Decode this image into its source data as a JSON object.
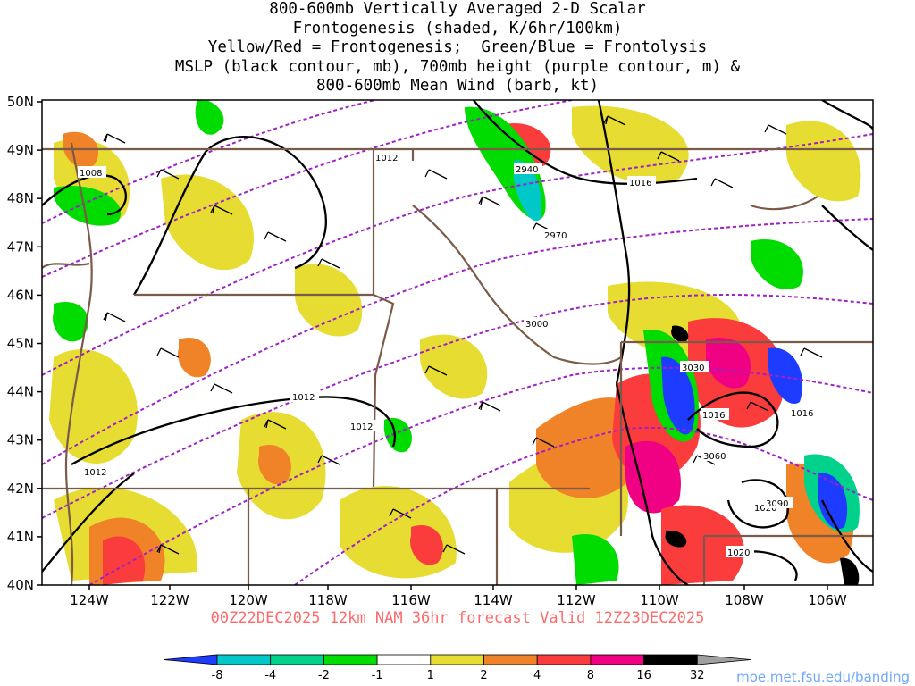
{
  "title_lines": [
    "800-600mb Vertically Averaged 2-D Scalar",
    "Frontogenesis (shaded, K/6hr/100km)",
    "Yellow/Red = Frontogenesis;  Green/Blue = Frontolysis",
    "MSLP (black contour, mb), 700mb height (purple contour, m) &",
    "800-600mb Mean Wind (barb, kt)"
  ],
  "valid_text": "00Z22DEC2025 12km NAM 36hr forecast Valid 12Z23DEC2025",
  "credit": "moe.met.fsu.edu/banding",
  "axes": {
    "lon_ticks": [
      "124W",
      "122W",
      "120W",
      "118W",
      "116W",
      "114W",
      "112W",
      "110W",
      "108W",
      "106W"
    ],
    "lat_ticks": [
      "50N",
      "49N",
      "48N",
      "47N",
      "46N",
      "45N",
      "44N",
      "43N",
      "42N",
      "41N",
      "40N"
    ]
  },
  "contour_labels": {
    "mslp": [
      "1008",
      "1012",
      "1016",
      "1012",
      "1012",
      "1016",
      "1016",
      "1020",
      "1020",
      "1012"
    ],
    "height": [
      "2940",
      "2970",
      "3000",
      "3030",
      "3060",
      "3090"
    ]
  },
  "colorbar": {
    "labels": [
      "-8",
      "-4",
      "-2",
      "-1",
      "1",
      "2",
      "4",
      "8",
      "16",
      "32"
    ],
    "colors": [
      "#1e3cff",
      "#00c8c8",
      "#00d28c",
      "#00dc00",
      "#ffffff",
      "#e6dc32",
      "#f08228",
      "#fa3c3c",
      "#f00082",
      "#000000",
      "#a0a0a0"
    ]
  }
}
